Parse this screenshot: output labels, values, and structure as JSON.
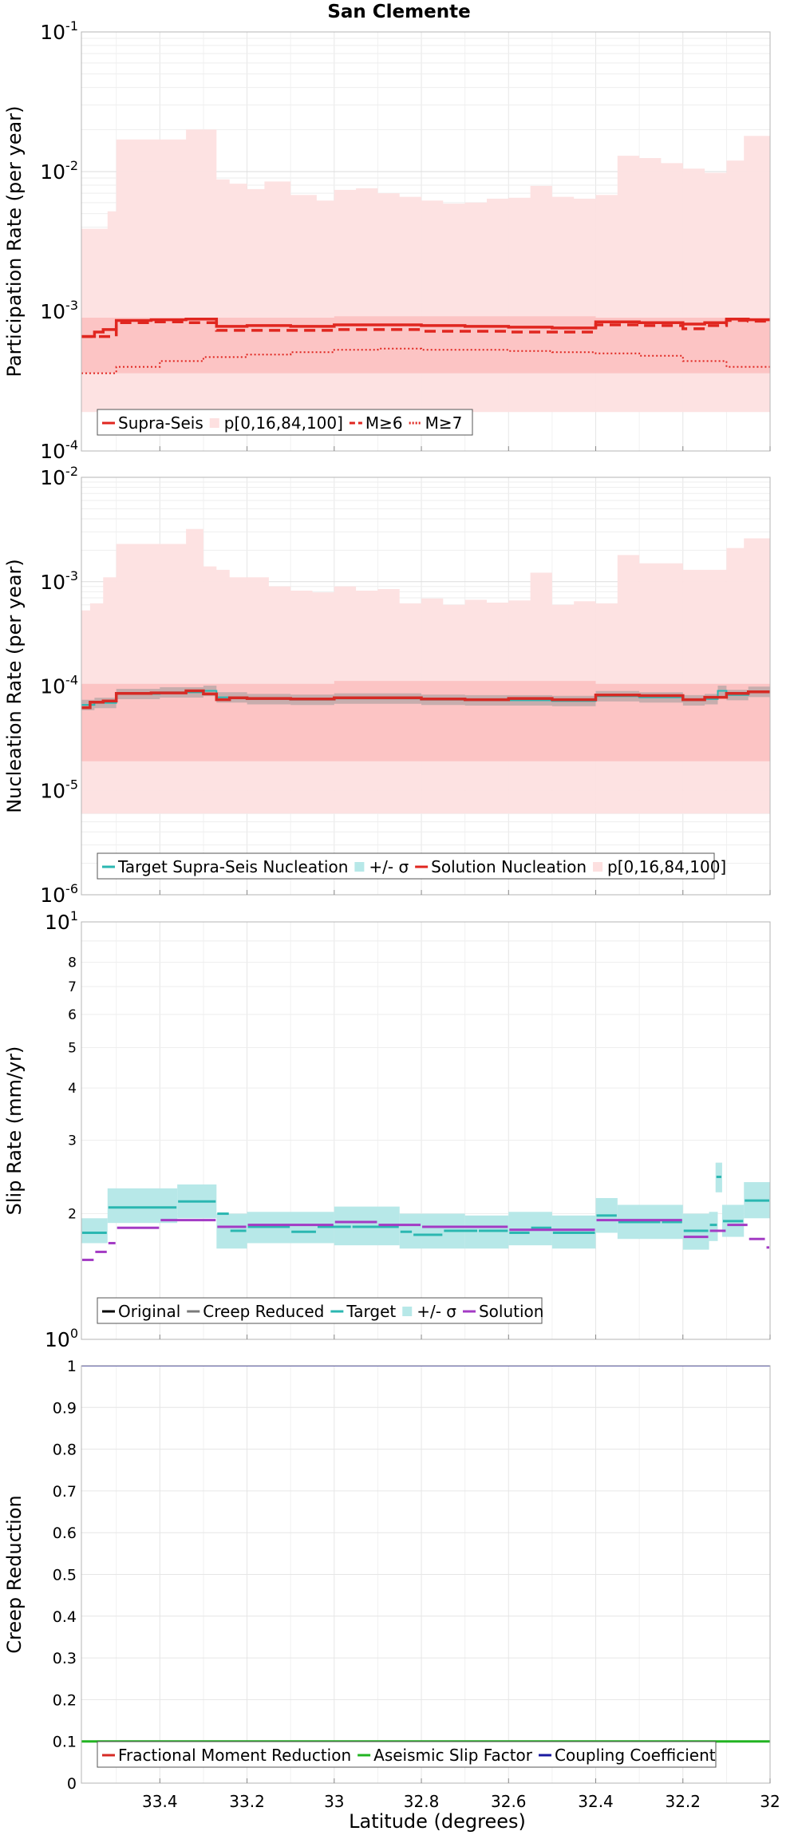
{
  "title": "San Clemente",
  "xlabel": "Latitude (degrees)",
  "x_ticks": [
    "33.4",
    "33.2",
    "33",
    "32.8",
    "32.6",
    "32.4",
    "32.2",
    "32"
  ],
  "chart_data": [
    {
      "id": "participation",
      "type": "line",
      "ylabel": "Participation Rate (per year)",
      "yscale": "log",
      "ylim": [
        0.0001,
        0.1
      ],
      "xlim": [
        33.58,
        32.0
      ],
      "x_ticks": [
        33.4,
        33.2,
        33.0,
        32.8,
        32.6,
        32.4,
        32.2,
        32.0
      ],
      "legend_position": "bottom-left",
      "legend": [
        "Supra-Seis",
        "p[0,16,84,100]",
        "M≥6",
        "M≥7"
      ],
      "bands": [
        {
          "name": "p[0,16,84,100] outer",
          "x": [
            33.58,
            33.52,
            33.5,
            33.42,
            33.34,
            33.27,
            33.24,
            33.2,
            33.16,
            33.1,
            33.04,
            33.0,
            32.95,
            32.9,
            32.85,
            32.8,
            32.75,
            32.7,
            32.65,
            32.6,
            32.55,
            32.5,
            32.45,
            32.4,
            32.35,
            32.3,
            32.25,
            32.2,
            32.15,
            32.1,
            32.06,
            32.0
          ],
          "lower": [
            0.00019,
            0.00019,
            0.00019,
            0.00019,
            0.00019,
            0.00019,
            0.00019,
            0.00019,
            0.00019,
            0.00019,
            0.00019,
            0.00019,
            0.00019,
            0.00019,
            0.00019,
            0.00019,
            0.00019,
            0.00019,
            0.00019,
            0.00019,
            0.00019,
            0.00019,
            0.00019,
            0.00019,
            0.00019,
            0.00019,
            0.00019,
            0.00019,
            0.00019,
            0.00019,
            0.00019,
            0.00012
          ],
          "upper": [
            0.0039,
            0.0052,
            0.017,
            0.017,
            0.02,
            0.0088,
            0.0082,
            0.0075,
            0.0085,
            0.0068,
            0.0062,
            0.0074,
            0.0076,
            0.007,
            0.0066,
            0.0062,
            0.0059,
            0.006,
            0.0064,
            0.0065,
            0.0079,
            0.0066,
            0.0064,
            0.0068,
            0.013,
            0.0125,
            0.0115,
            0.0105,
            0.0098,
            0.012,
            0.018,
            0.02
          ]
        },
        {
          "name": "p[0,16,84,100] inner",
          "x": [
            33.58,
            33.0,
            32.4,
            32.0
          ],
          "lower": [
            0.00036,
            0.00036,
            0.00036,
            0.00036
          ],
          "upper": [
            0.0009,
            0.00092,
            0.0009,
            0.00096
          ]
        }
      ],
      "series": [
        {
          "name": "Supra-Seis",
          "style": "solid",
          "x": [
            33.58,
            33.55,
            33.53,
            33.5,
            33.42,
            33.34,
            33.27,
            33.2,
            33.1,
            33.0,
            32.9,
            32.8,
            32.7,
            32.6,
            32.5,
            32.4,
            32.3,
            32.2,
            32.15,
            32.1,
            32.05,
            32.0
          ],
          "y": [
            0.00066,
            0.00071,
            0.00074,
            0.00086,
            0.00087,
            0.00088,
            0.00078,
            0.00079,
            0.00078,
            0.0008,
            0.0008,
            0.00079,
            0.00078,
            0.00077,
            0.00076,
            0.00084,
            0.00083,
            0.00081,
            0.00083,
            0.00088,
            0.00087,
            0.00081
          ]
        },
        {
          "name": "M≥6",
          "style": "dashed",
          "x": [
            33.58,
            33.5,
            33.42,
            33.34,
            33.27,
            33.2,
            33.1,
            33.0,
            32.9,
            32.8,
            32.7,
            32.6,
            32.5,
            32.4,
            32.3,
            32.2,
            32.15,
            32.1,
            32.05,
            32.0
          ],
          "y": [
            0.00066,
            0.00083,
            0.00084,
            0.00083,
            0.00073,
            0.00073,
            0.00073,
            0.00074,
            0.00074,
            0.00072,
            0.00072,
            0.00071,
            0.00071,
            0.0008,
            0.00079,
            0.00075,
            0.00079,
            0.00086,
            0.00085,
            0.0008
          ]
        },
        {
          "name": "M≥7",
          "style": "dotted",
          "x": [
            33.58,
            33.5,
            33.4,
            33.3,
            33.2,
            33.1,
            33.0,
            32.9,
            32.8,
            32.7,
            32.6,
            32.5,
            32.4,
            32.3,
            32.2,
            32.1,
            32.0
          ],
          "y": [
            0.00036,
            0.0004,
            0.00044,
            0.00047,
            0.00049,
            0.00051,
            0.00053,
            0.00054,
            0.00053,
            0.00053,
            0.00052,
            0.00051,
            0.0005,
            0.00048,
            0.00044,
            0.0004,
            0.00035
          ]
        }
      ]
    },
    {
      "id": "nucleation",
      "type": "line",
      "ylabel": "Nucleation Rate (per year)",
      "yscale": "log",
      "ylim": [
        1e-06,
        0.01
      ],
      "xlim": [
        33.58,
        32.0
      ],
      "x_ticks": [
        33.4,
        33.2,
        33.0,
        32.8,
        32.6,
        32.4,
        32.2,
        32.0
      ],
      "legend_position": "bottom-left",
      "legend": [
        "Target Supra-Seis Nucleation",
        "+/- σ",
        "Solution Nucleation",
        "p[0,16,84,100]"
      ],
      "bands": [
        {
          "name": "p[0,16,84,100] outer",
          "x": [
            33.58,
            33.56,
            33.53,
            33.5,
            33.42,
            33.34,
            33.3,
            33.27,
            33.24,
            33.2,
            33.15,
            33.1,
            33.05,
            33.0,
            32.95,
            32.9,
            32.85,
            32.8,
            32.75,
            32.7,
            32.65,
            32.6,
            32.55,
            32.5,
            32.45,
            32.4,
            32.35,
            32.3,
            32.25,
            32.2,
            32.15,
            32.1,
            32.06,
            32.0
          ],
          "lower": [
            6e-06,
            6e-06,
            6e-06,
            6e-06,
            6e-06,
            6e-06,
            6e-06,
            6e-06,
            6e-06,
            6e-06,
            6e-06,
            6e-06,
            6e-06,
            6e-06,
            6e-06,
            6e-06,
            6e-06,
            6e-06,
            6e-06,
            6e-06,
            6e-06,
            6e-06,
            6e-06,
            6e-06,
            6e-06,
            6e-06,
            6e-06,
            6e-06,
            6e-06,
            6e-06,
            6e-06,
            6e-06,
            6e-06,
            6e-06
          ],
          "upper": [
            0.00053,
            0.00062,
            0.0011,
            0.0023,
            0.0023,
            0.0032,
            0.0014,
            0.0013,
            0.0011,
            0.0011,
            0.0009,
            0.00082,
            0.00079,
            0.0009,
            0.00082,
            0.00085,
            0.00062,
            0.00069,
            0.0006,
            0.00067,
            0.00063,
            0.00066,
            0.00122,
            0.0006,
            0.00065,
            0.00062,
            0.0018,
            0.0015,
            0.0015,
            0.0013,
            0.0013,
            0.0021,
            0.0026,
            0.0048
          ]
        },
        {
          "name": "p[0,16,84,100] inner",
          "x": [
            33.58,
            33.0,
            32.4,
            32.0
          ],
          "lower": [
            1.9e-05,
            1.9e-05,
            1.9e-05,
            1.8e-05
          ],
          "upper": [
            0.000105,
            0.000112,
            0.000105,
            0.000112
          ]
        }
      ],
      "series": [
        {
          "name": "Target Supra-Seis Nucleation",
          "style": "solid",
          "color": "#2bb7b1",
          "x": [
            33.58,
            33.55,
            33.5,
            33.4,
            33.3,
            33.27,
            33.2,
            33.1,
            33.0,
            32.9,
            32.8,
            32.7,
            32.6,
            32.5,
            32.4,
            32.3,
            32.2,
            32.15,
            32.12,
            32.1,
            32.05,
            32.0
          ],
          "y": [
            6.6e-05,
            6.9e-05,
            8.4e-05,
            8.7e-05,
            9e-05,
            7.8e-05,
            7.5e-05,
            7.4e-05,
            7.6e-05,
            7.6e-05,
            7.4e-05,
            7.3e-05,
            7.3e-05,
            7.2e-05,
            8e-05,
            7.8e-05,
            7.3e-05,
            7.5e-05,
            9e-05,
            8.2e-05,
            8.8e-05,
            8.3e-05
          ]
        },
        {
          "name": "Solution Nucleation",
          "style": "solid",
          "color": "#d62a24",
          "x": [
            33.58,
            33.56,
            33.53,
            33.5,
            33.42,
            33.34,
            33.3,
            33.27,
            33.24,
            33.2,
            33.1,
            33.0,
            32.9,
            32.8,
            32.7,
            32.6,
            32.5,
            32.4,
            32.3,
            32.2,
            32.15,
            32.1,
            32.05,
            32.0
          ],
          "y": [
            6.2e-05,
            7e-05,
            7.2e-05,
            8.5e-05,
            8.6e-05,
            9e-05,
            8.4e-05,
            7.4e-05,
            7.7e-05,
            7.6e-05,
            7.5e-05,
            7.7e-05,
            7.7e-05,
            7.5e-05,
            7.4e-05,
            7.6e-05,
            7.4e-05,
            8.2e-05,
            8.1e-05,
            7.4e-05,
            7.8e-05,
            8.5e-05,
            8.8e-05,
            8.4e-05
          ]
        }
      ]
    },
    {
      "id": "slip",
      "type": "line",
      "ylabel": "Slip Rate (mm/yr)",
      "yscale": "log",
      "ylim": [
        1,
        10
      ],
      "y_minor_labels": [
        "2",
        "3",
        "4",
        "5",
        "6",
        "7",
        "8"
      ],
      "xlim": [
        33.58,
        32.0
      ],
      "x_ticks": [
        33.4,
        33.2,
        33.0,
        32.8,
        32.6,
        32.4,
        32.2,
        32.0
      ],
      "legend_position": "bottom-left",
      "legend": [
        "Original",
        "Creep Reduced",
        "Target",
        "+/- σ",
        "Solution"
      ],
      "target_segments": [
        [
          33.58,
          33.52,
          1.8
        ],
        [
          33.52,
          33.36,
          2.07
        ],
        [
          33.36,
          33.27,
          2.14
        ],
        [
          33.27,
          33.24,
          2.0
        ],
        [
          33.24,
          33.2,
          1.82
        ],
        [
          33.2,
          33.1,
          1.86
        ],
        [
          33.1,
          33.04,
          1.81
        ],
        [
          33.04,
          32.96,
          1.86
        ],
        [
          32.96,
          32.85,
          1.86
        ],
        [
          32.85,
          32.82,
          1.81
        ],
        [
          32.82,
          32.75,
          1.78
        ],
        [
          32.75,
          32.67,
          1.82
        ],
        [
          32.67,
          32.6,
          1.82
        ],
        [
          32.6,
          32.55,
          1.8
        ],
        [
          32.55,
          32.5,
          1.85
        ],
        [
          32.5,
          32.4,
          1.8
        ],
        [
          32.4,
          32.35,
          1.98
        ],
        [
          32.35,
          32.25,
          1.91
        ],
        [
          32.25,
          32.2,
          1.91
        ],
        [
          32.2,
          32.14,
          1.82
        ],
        [
          32.14,
          32.12,
          1.88
        ],
        [
          32.125,
          32.11,
          2.45
        ],
        [
          32.11,
          32.06,
          1.92
        ],
        [
          32.06,
          32.0,
          2.15
        ]
      ],
      "solution_segments": [
        [
          33.58,
          33.55,
          1.55
        ],
        [
          33.55,
          33.52,
          1.62
        ],
        [
          33.52,
          33.5,
          1.7
        ],
        [
          33.5,
          33.4,
          1.85
        ],
        [
          33.4,
          33.27,
          1.93
        ],
        [
          33.27,
          33.2,
          1.86
        ],
        [
          33.2,
          33.0,
          1.88
        ],
        [
          33.0,
          32.9,
          1.91
        ],
        [
          32.9,
          32.8,
          1.88
        ],
        [
          32.8,
          32.6,
          1.86
        ],
        [
          32.6,
          32.4,
          1.83
        ],
        [
          32.4,
          32.2,
          1.93
        ],
        [
          32.2,
          32.14,
          1.76
        ],
        [
          32.14,
          32.1,
          1.82
        ],
        [
          32.1,
          32.05,
          1.88
        ],
        [
          32.05,
          32.01,
          1.74
        ],
        [
          32.01,
          32.0,
          1.66
        ]
      ],
      "band_segments": [
        [
          33.58,
          33.52,
          1.7,
          1.95
        ],
        [
          33.52,
          33.36,
          1.9,
          2.3
        ],
        [
          33.36,
          33.27,
          1.95,
          2.35
        ],
        [
          33.27,
          33.2,
          1.65,
          2.0
        ],
        [
          33.2,
          33.0,
          1.7,
          2.02
        ],
        [
          33.0,
          32.85,
          1.68,
          2.08
        ],
        [
          32.85,
          32.7,
          1.65,
          2.0
        ],
        [
          32.7,
          32.6,
          1.65,
          1.98
        ],
        [
          32.6,
          32.5,
          1.68,
          2.02
        ],
        [
          32.5,
          32.4,
          1.65,
          1.98
        ],
        [
          32.4,
          32.35,
          1.8,
          2.18
        ],
        [
          32.35,
          32.2,
          1.74,
          2.1
        ],
        [
          32.2,
          32.14,
          1.64,
          2.0
        ],
        [
          32.14,
          32.12,
          1.72,
          2.02
        ],
        [
          32.125,
          32.11,
          2.25,
          2.65
        ],
        [
          32.11,
          32.06,
          1.76,
          2.1
        ],
        [
          32.06,
          32.0,
          1.95,
          2.38
        ]
      ]
    },
    {
      "id": "creep",
      "type": "line",
      "ylabel": "Creep Reduction",
      "yscale": "linear",
      "ylim": [
        0,
        1
      ],
      "y_ticks": [
        "0",
        "0.1",
        "0.2",
        "0.3",
        "0.4",
        "0.5",
        "0.6",
        "0.7",
        "0.8",
        "0.9",
        "1"
      ],
      "xlim": [
        33.58,
        32.0
      ],
      "x_ticks": [
        33.4,
        33.2,
        33.0,
        32.8,
        32.6,
        32.4,
        32.2,
        32.0
      ],
      "legend_position": "bottom-left",
      "legend": [
        "Fractional Moment Reduction",
        "Aseismic Slip Factor",
        "Coupling Coefficient"
      ],
      "series": [
        {
          "name": "Fractional Moment Reduction",
          "color": "#d62a24",
          "x": [
            33.58,
            32.0
          ],
          "y": [
            0.1,
            0.1
          ]
        },
        {
          "name": "Aseismic Slip Factor",
          "color": "#22b422",
          "x": [
            33.58,
            32.0
          ],
          "y": [
            0.1,
            0.1
          ]
        },
        {
          "name": "Coupling Coefficient",
          "color": "#1a1aa0",
          "x": [
            33.58,
            32.0
          ],
          "y": [
            1,
            1
          ]
        }
      ]
    }
  ],
  "colors": {
    "supra": "#e0261f",
    "band_outer": "#fde0e0",
    "band_inner": "#fbb9b9",
    "target": "#2bb7b1",
    "sigma": "#b7e8e8",
    "solution_slip": "#a33bc4",
    "creep_reduced": "#7a7a7a"
  }
}
